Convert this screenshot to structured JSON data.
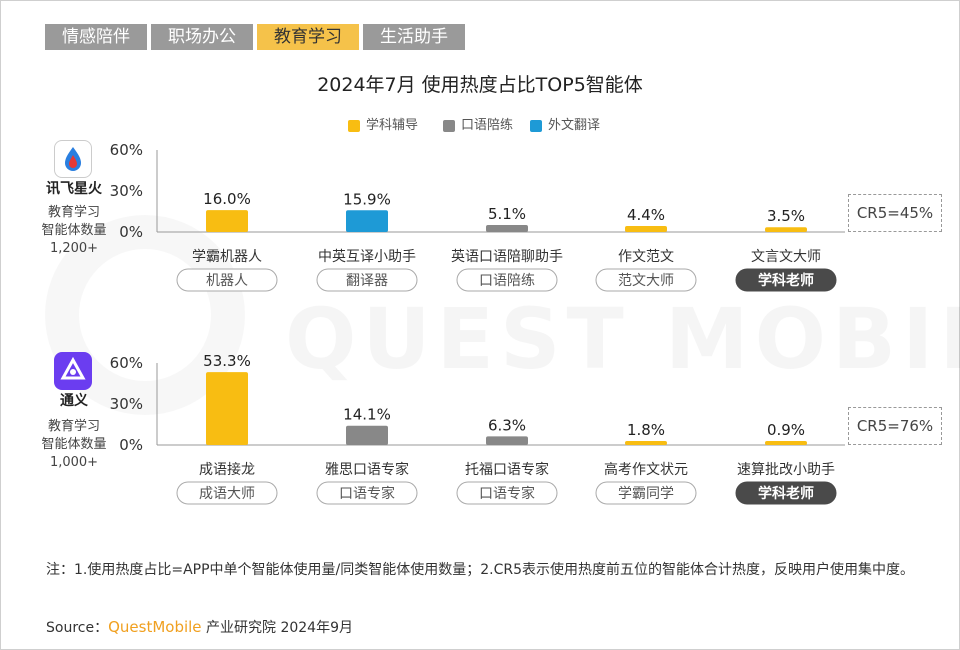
{
  "tabs": [
    {
      "label": "情感陪伴",
      "active": false
    },
    {
      "label": "职场办公",
      "active": false
    },
    {
      "label": "教育学习",
      "active": true
    },
    {
      "label": "生活助手",
      "active": false
    }
  ],
  "watermark": "QUEST MOBILE",
  "note": "注：1.使用热度占比=APP中单个智能体使用量/同类智能体使用数量；2.CR5表示使用热度前五位的智能体合计热度，反映用户使用集中度。",
  "source": {
    "prefix": "Source：",
    "brand": "QuestMobile",
    "suffix": " 产业研究院 2024年9月"
  },
  "colors": {
    "学科辅导": "#f8bd12",
    "口语陪练": "#888888",
    "外文翻译": "#1e9ad6"
  },
  "chart_data": {
    "type": "bar",
    "title": "2024年7月 使用热度占比TOP5智能体",
    "legend": [
      "学科辅导",
      "口语陪练",
      "外文翻译"
    ],
    "yticks": [
      "60%",
      "30%",
      "0%"
    ],
    "ylim": [
      0,
      60
    ],
    "panels": [
      {
        "app": "讯飞星火",
        "sub": [
          "教育学习",
          "智能体数量",
          "1,200+"
        ],
        "cr5": "CR5=45%",
        "bars": [
          {
            "name": "学霸机器人",
            "value": 16.0,
            "label": "16.0%",
            "category": "学科辅导",
            "tag": "机器人",
            "tag_dark": false
          },
          {
            "name": "中英互译小助手",
            "value": 15.9,
            "label": "15.9%",
            "category": "外文翻译",
            "tag": "翻译器",
            "tag_dark": false
          },
          {
            "name": "英语口语陪聊助手",
            "value": 5.1,
            "label": "5.1%",
            "category": "口语陪练",
            "tag": "口语陪练",
            "tag_dark": false
          },
          {
            "name": "作文范文",
            "value": 4.4,
            "label": "4.4%",
            "category": "学科辅导",
            "tag": "范文大师",
            "tag_dark": false
          },
          {
            "name": "文言文大师",
            "value": 3.5,
            "label": "3.5%",
            "category": "学科辅导",
            "tag": "学科老师",
            "tag_dark": true
          }
        ]
      },
      {
        "app": "通义",
        "sub": [
          "教育学习",
          "智能体数量",
          "1,000+"
        ],
        "cr5": "CR5=76%",
        "bars": [
          {
            "name": "成语接龙",
            "value": 53.3,
            "label": "53.3%",
            "category": "学科辅导",
            "tag": "成语大师",
            "tag_dark": false
          },
          {
            "name": "雅思口语专家",
            "value": 14.1,
            "label": "14.1%",
            "category": "口语陪练",
            "tag": "口语专家",
            "tag_dark": false
          },
          {
            "name": "托福口语专家",
            "value": 6.3,
            "label": "6.3%",
            "category": "口语陪练",
            "tag": "口语专家",
            "tag_dark": false
          },
          {
            "name": "高考作文状元",
            "value": 1.8,
            "label": "1.8%",
            "category": "学科辅导",
            "tag": "学霸同学",
            "tag_dark": false
          },
          {
            "name": "速算批改小助手",
            "value": 0.9,
            "label": "0.9%",
            "category": "学科辅导",
            "tag": "学科老师",
            "tag_dark": true
          }
        ]
      }
    ]
  }
}
